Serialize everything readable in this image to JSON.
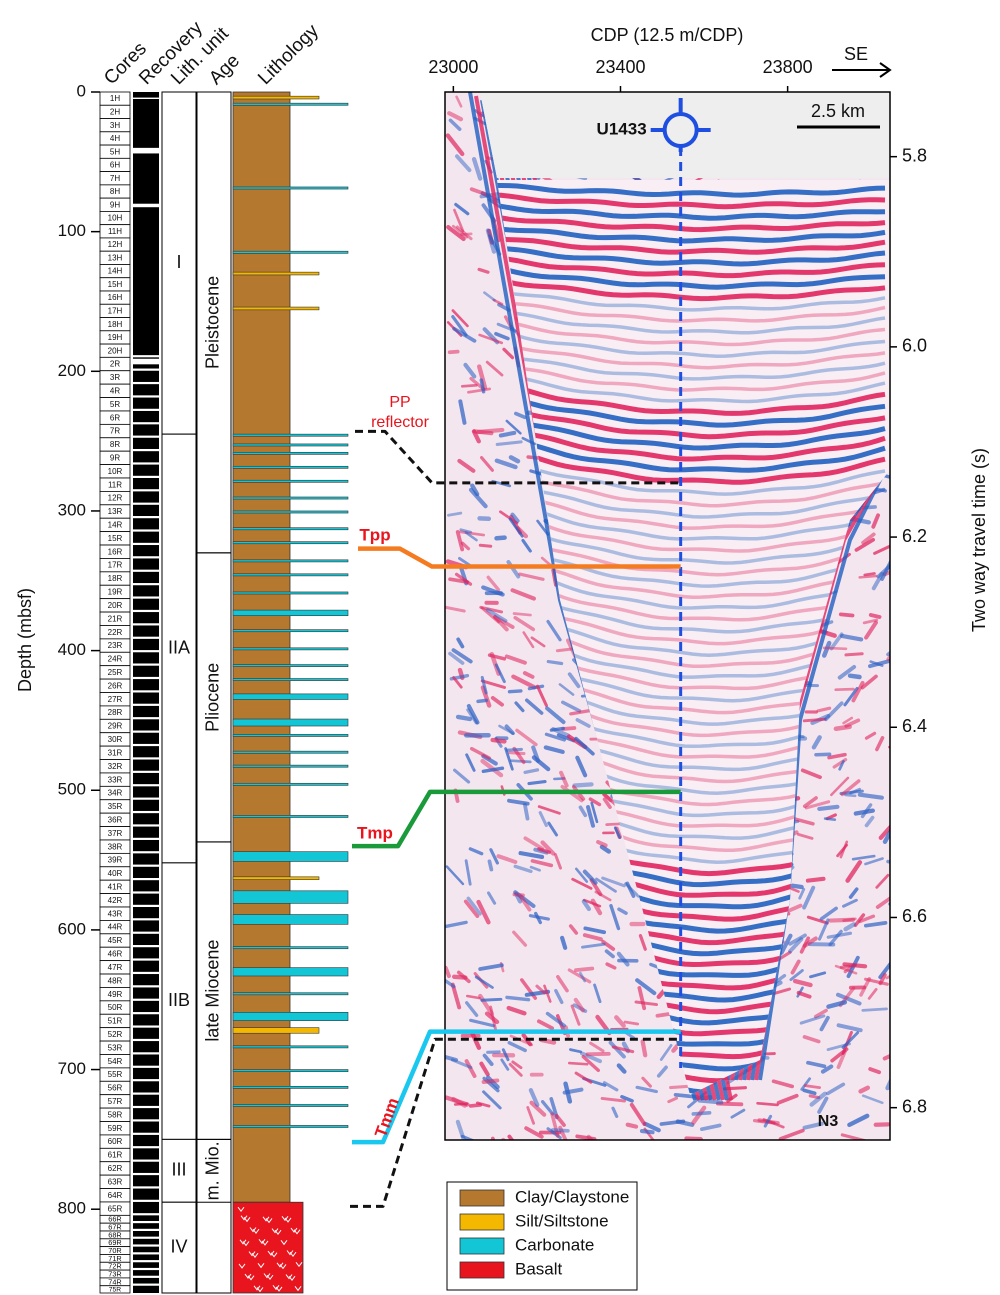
{
  "left_panel": {
    "headers": [
      "Cores",
      "Recovery",
      "Lith. unit",
      "Age",
      "Lithology"
    ],
    "depth_label": "Depth (mbsf)",
    "depth_lim": [
      0,
      860
    ],
    "depth_ticks": [
      0,
      100,
      200,
      300,
      400,
      500,
      600,
      700,
      800
    ],
    "cores": {
      "names": [
        "1H",
        "2H",
        "3H",
        "4H",
        "5H",
        "6H",
        "7H",
        "8H",
        "9H",
        "10H",
        "11H",
        "12H",
        "13H",
        "14H",
        "15H",
        "16H",
        "17H",
        "18H",
        "19H",
        "20H",
        "2R",
        "3R",
        "4R",
        "5R",
        "6R",
        "7R",
        "8R",
        "9R",
        "10R",
        "11R",
        "12R",
        "13R",
        "14R",
        "15R",
        "16R",
        "17R",
        "18R",
        "19R",
        "20R",
        "21R",
        "22R",
        "23R",
        "24R",
        "25R",
        "26R",
        "27R",
        "28R",
        "29R",
        "30R",
        "31R",
        "32R",
        "33R",
        "34R",
        "35R",
        "36R",
        "37R",
        "38R",
        "39R",
        "40R",
        "41R",
        "42R",
        "43R",
        "44R",
        "45R",
        "46R",
        "47R",
        "48R",
        "49R",
        "50R",
        "51R",
        "52R",
        "53R",
        "54R",
        "55R",
        "56R",
        "57R",
        "58R",
        "59R",
        "60R",
        "61R",
        "62R",
        "63R",
        "64R",
        "65R",
        "66R",
        "67R",
        "68R",
        "69R",
        "70R",
        "71R",
        "72R",
        "73R",
        "74R",
        "75R"
      ],
      "tops": [
        0,
        9.5,
        19,
        28.5,
        38,
        47.5,
        57,
        66.5,
        76,
        85.5,
        95,
        104.5,
        114,
        123.5,
        133,
        142.5,
        152,
        161.5,
        171,
        180.5,
        190,
        199.6,
        209.2,
        218.8,
        228.4,
        238,
        247.6,
        257.2,
        266.8,
        276.4,
        286,
        295.6,
        305.2,
        314.8,
        324.4,
        334,
        343.6,
        353.2,
        362.8,
        372.4,
        382,
        391.6,
        401.2,
        410.8,
        420.4,
        430,
        439.6,
        449.2,
        458.8,
        468.4,
        478,
        487.6,
        497.2,
        506.8,
        516.4,
        526,
        535.6,
        545.2,
        554.8,
        564.4,
        574,
        583.6,
        593.2,
        602.8,
        612.4,
        622,
        631.6,
        641.2,
        650.8,
        660.4,
        670,
        679.6,
        689.2,
        698.8,
        708.4,
        718,
        727.6,
        737.2,
        746.8,
        756.4,
        766,
        775.6,
        785.2,
        794.8,
        804.4,
        810,
        815.6,
        821.2,
        826.8,
        832.4,
        838,
        843.6,
        849.2,
        854.8
      ]
    },
    "lith_units": [
      {
        "label": "I",
        "top": 0,
        "bottom": 245
      },
      {
        "label": "IIA",
        "top": 245,
        "bottom": 552
      },
      {
        "label": "IIB",
        "top": 552,
        "bottom": 750
      },
      {
        "label": "III",
        "top": 750,
        "bottom": 795
      },
      {
        "label": "IV",
        "top": 795,
        "bottom": 860
      }
    ],
    "ages": [
      {
        "label": "Pleistocene",
        "top": 0,
        "bottom": 330
      },
      {
        "label": "Pliocene",
        "top": 330,
        "bottom": 537
      },
      {
        "label": "late Miocene",
        "top": 537,
        "bottom": 750
      },
      {
        "label": "m. Mio.",
        "top": 750,
        "bottom": 795
      }
    ],
    "lithology_base": [
      {
        "type": "Clay/Claystone",
        "top": 0,
        "bottom": 795
      },
      {
        "type": "Basalt",
        "top": 795,
        "bottom": 860
      }
    ],
    "beds": [
      {
        "type": "Silt/Siltstone",
        "top": 3,
        "bottom": 5
      },
      {
        "type": "Carbonate",
        "top": 8,
        "bottom": 9.5
      },
      {
        "type": "Carbonate",
        "top": 68,
        "bottom": 69.5
      },
      {
        "type": "Carbonate",
        "top": 114,
        "bottom": 115.5
      },
      {
        "type": "Silt/Siltstone",
        "top": 129,
        "bottom": 131
      },
      {
        "type": "Silt/Siltstone",
        "top": 154,
        "bottom": 156
      },
      {
        "type": "Carbonate",
        "top": 245,
        "bottom": 246.5
      },
      {
        "type": "Carbonate",
        "top": 252,
        "bottom": 253.5
      },
      {
        "type": "Carbonate",
        "top": 258,
        "bottom": 259.5
      },
      {
        "type": "Carbonate",
        "top": 268,
        "bottom": 269.5
      },
      {
        "type": "Carbonate",
        "top": 278,
        "bottom": 279.5
      },
      {
        "type": "Carbonate",
        "top": 290,
        "bottom": 291.5
      },
      {
        "type": "Carbonate",
        "top": 300,
        "bottom": 301.5
      },
      {
        "type": "Carbonate",
        "top": 312,
        "bottom": 313.5
      },
      {
        "type": "Carbonate",
        "top": 322,
        "bottom": 323.5
      },
      {
        "type": "Carbonate",
        "top": 335,
        "bottom": 336.5
      },
      {
        "type": "Carbonate",
        "top": 345,
        "bottom": 346.5
      },
      {
        "type": "Carbonate",
        "top": 358,
        "bottom": 359.5
      },
      {
        "type": "Carbonate",
        "top": 371,
        "bottom": 375
      },
      {
        "type": "Carbonate",
        "top": 385,
        "bottom": 386.5
      },
      {
        "type": "Carbonate",
        "top": 398,
        "bottom": 399.5
      },
      {
        "type": "Carbonate",
        "top": 410,
        "bottom": 411.5
      },
      {
        "type": "Carbonate",
        "top": 420,
        "bottom": 421.5
      },
      {
        "type": "Carbonate",
        "top": 431,
        "bottom": 435
      },
      {
        "type": "Carbonate",
        "top": 449,
        "bottom": 454
      },
      {
        "type": "Carbonate",
        "top": 460,
        "bottom": 461.5
      },
      {
        "type": "Carbonate",
        "top": 472,
        "bottom": 473.5
      },
      {
        "type": "Carbonate",
        "top": 482,
        "bottom": 483.5
      },
      {
        "type": "Carbonate",
        "top": 495,
        "bottom": 496.5
      },
      {
        "type": "Carbonate",
        "top": 518,
        "bottom": 519.5
      },
      {
        "type": "Carbonate",
        "top": 544,
        "bottom": 551
      },
      {
        "type": "Silt/Siltstone",
        "top": 562,
        "bottom": 564
      },
      {
        "type": "Carbonate",
        "top": 572,
        "bottom": 581
      },
      {
        "type": "Carbonate",
        "top": 589,
        "bottom": 596
      },
      {
        "type": "Carbonate",
        "top": 612,
        "bottom": 613.5
      },
      {
        "type": "Carbonate",
        "top": 627,
        "bottom": 633
      },
      {
        "type": "Carbonate",
        "top": 645,
        "bottom": 646.5
      },
      {
        "type": "Carbonate",
        "top": 659,
        "bottom": 665
      },
      {
        "type": "Silt/Siltstone",
        "top": 670,
        "bottom": 674
      },
      {
        "type": "Carbonate",
        "top": 683,
        "bottom": 684.5
      },
      {
        "type": "Carbonate",
        "top": 700,
        "bottom": 701.5
      },
      {
        "type": "Carbonate",
        "top": 712,
        "bottom": 713.5
      },
      {
        "type": "Carbonate",
        "top": 725,
        "bottom": 726.5
      },
      {
        "type": "Carbonate",
        "top": 740,
        "bottom": 741.5
      }
    ]
  },
  "seismic": {
    "x_label": "CDP (12.5 m/CDP)",
    "xlim": [
      22980,
      24045
    ],
    "xticks": [
      23000,
      23400,
      23800
    ],
    "y_label": "Two way travel time (s)",
    "ylim": [
      5.732,
      6.834
    ],
    "yticks": [
      5.8,
      {
        "value": 6,
        "label": "6.0"
      },
      6.2,
      6.4,
      6.6,
      6.8
    ],
    "direction": "SE",
    "scale_bar": "2.5 km",
    "profile": "N3",
    "site": {
      "name": "U1433",
      "cdp": 23544
    },
    "horizons": [
      {
        "label_lines": [
          "PP",
          "reflector"
        ],
        "depth": 243,
        "twt": 6.143,
        "color": "#111111",
        "dashed": true
      },
      {
        "label": "Tpp",
        "depth": 327,
        "twt": 6.231,
        "color": "#f47b20",
        "dashed": false
      },
      {
        "label": "Tmp",
        "depth": 540,
        "twt": 6.468,
        "color": "#1a9a3a",
        "dashed": false
      },
      {
        "label": "Tmm",
        "depth": 752,
        "twt": 6.72,
        "color": "#19c7ef",
        "dashed": false
      },
      {
        "depth": 798,
        "twt": 6.728,
        "color": "#111111",
        "dashed": true
      }
    ]
  },
  "legend": [
    {
      "label": "Clay/Claystone",
      "color": "#b5782f"
    },
    {
      "label": "Silt/Siltstone",
      "color": "#f5b800"
    },
    {
      "label": "Carbonate",
      "color": "#13c6d6"
    },
    {
      "label": "Basalt",
      "color": "#e8141e"
    }
  ]
}
